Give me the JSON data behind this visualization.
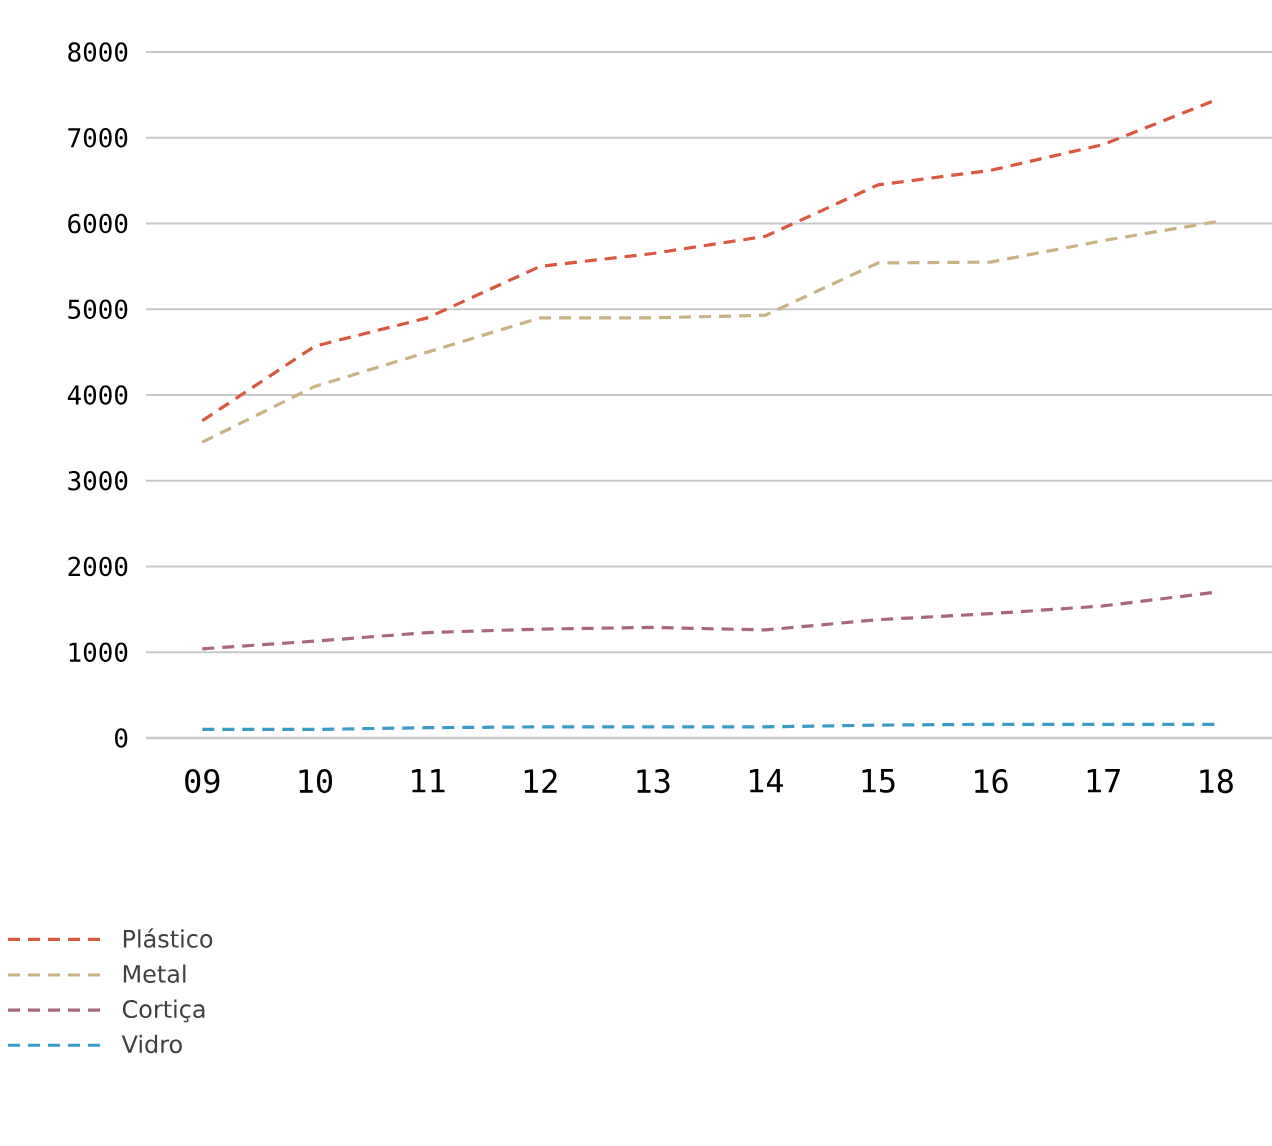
{
  "chart_data": {
    "type": "line",
    "categories": [
      "09",
      "10",
      "11",
      "12",
      "13",
      "14",
      "15",
      "16",
      "17",
      "18"
    ],
    "series": [
      {
        "name": "Plástico",
        "color": "#d9583f",
        "values": [
          3700,
          4570,
          4900,
          5500,
          5650,
          5850,
          6450,
          6620,
          6920,
          7440
        ]
      },
      {
        "name": "Metal",
        "color": "#c8b385",
        "values": [
          3450,
          4100,
          4500,
          4900,
          4900,
          4930,
          5540,
          5550,
          5800,
          6020
        ]
      },
      {
        "name": "Cortiça",
        "color": "#a8687a",
        "values": [
          1040,
          1130,
          1230,
          1270,
          1290,
          1260,
          1380,
          1450,
          1540,
          1700
        ]
      },
      {
        "name": "Vidro",
        "color": "#3a9cc6",
        "values": [
          100,
          100,
          120,
          130,
          130,
          130,
          150,
          160,
          160,
          160
        ]
      }
    ],
    "ylim": [
      0,
      8000
    ],
    "yticks": [
      0,
      1000,
      2000,
      3000,
      4000,
      5000,
      6000,
      7000,
      8000
    ],
    "grid": "y",
    "legend": "bottom left",
    "line_style": "dashed",
    "marker": "none"
  }
}
